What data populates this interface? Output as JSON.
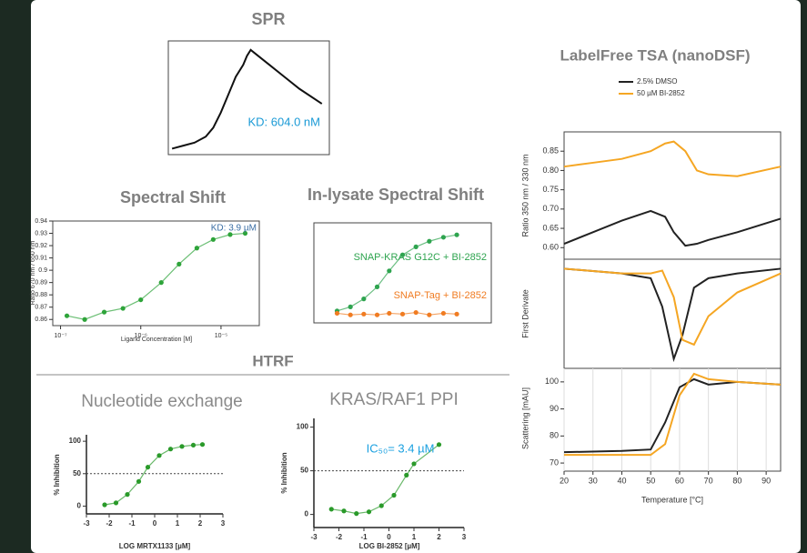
{
  "headings": {
    "htrf": "HTRF",
    "tsa": "LabelFree TSA (nanoDSF)"
  },
  "chart_data": [
    {
      "type": "line",
      "title": "SPR",
      "annotations": [
        "KD: 604.0 nM"
      ],
      "x": [
        0,
        150,
        300,
        450,
        550,
        650,
        750,
        850,
        950,
        1000,
        1050,
        1100,
        1300,
        1500,
        1700,
        2000
      ],
      "series": [
        {
          "color": "#111111",
          "mode": "line",
          "values": [
            2,
            3,
            4,
            6,
            9,
            14,
            20,
            26,
            30,
            33,
            35,
            34,
            30,
            26,
            22,
            17
          ]
        }
      ],
      "xlim": [
        -50,
        2100
      ],
      "ylim": [
        0,
        38
      ]
    },
    {
      "type": "line",
      "title": "Spectral Shift",
      "x_label": "Ligand Concentration [M]",
      "y_label": "Ratio 670 nm / 650 nm",
      "annotations": [
        "KD: 3.9 µM"
      ],
      "xscale": "log",
      "x": [
        1.2e-07,
        2e-07,
        3.5e-07,
        6e-07,
        1e-06,
        1.8e-06,
        3e-06,
        5e-06,
        8e-06,
        1.3e-05,
        2e-05
      ],
      "series": [
        {
          "color": "#2ea43a",
          "mode": "markers+line",
          "values": [
            0.863,
            0.86,
            0.866,
            0.869,
            0.876,
            0.89,
            0.905,
            0.918,
            0.925,
            0.929,
            0.93
          ]
        }
      ],
      "xlim": [
        8e-08,
        3e-05
      ],
      "xticks": [
        {
          "value": 1e-07,
          "label": "10⁻⁷"
        },
        {
          "value": 1e-06,
          "label": "10⁻⁶"
        },
        {
          "value": 1e-05,
          "label": "10⁻⁵"
        }
      ],
      "ylim": [
        0.855,
        0.94
      ],
      "yticks": [
        0.86,
        0.87,
        0.88,
        0.89,
        0.9,
        0.91,
        0.92,
        0.93,
        0.94
      ]
    },
    {
      "type": "line",
      "title": "In-lysate Spectral Shift",
      "xscale": "log",
      "x": [
        1e-08,
        2e-08,
        4e-08,
        8e-08,
        1.5e-07,
        3e-07,
        6e-07,
        1.2e-06,
        2.5e-06,
        5e-06
      ],
      "series": [
        {
          "name": "SNAP-KRAS G12C + BI-2852",
          "color": "#2ea44f",
          "mode": "markers+line",
          "values": [
            0.05,
            0.1,
            0.2,
            0.35,
            0.55,
            0.75,
            0.85,
            0.92,
            0.97,
            1.0
          ]
        },
        {
          "name": "SNAP-Tag + BI-2852",
          "color": "#f07c22",
          "mode": "markers+line",
          "values": [
            0.02,
            0,
            0.01,
            0,
            0.02,
            0.01,
            0.03,
            0,
            0.02,
            0.01
          ]
        }
      ],
      "xlim": [
        3e-09,
        3e-05
      ],
      "ylim": [
        -0.1,
        1.15
      ]
    },
    {
      "type": "line",
      "title": "Nucleotide exchange",
      "x_label": "LOG MRTX1133 [µM]",
      "y_label": "% Inhibition",
      "refline": 50,
      "x": [
        -2.2,
        -1.7,
        -1.2,
        -0.7,
        -0.3,
        0.2,
        0.7,
        1.2,
        1.7,
        2.1
      ],
      "series": [
        {
          "color": "#2a9a2a",
          "mode": "markers+line",
          "values": [
            2,
            5,
            18,
            38,
            60,
            78,
            88,
            92,
            94,
            95
          ]
        }
      ],
      "xlim": [
        -3,
        3
      ],
      "xticks": [
        -3,
        -2,
        -1,
        0,
        1,
        2,
        3
      ],
      "ylim": [
        -12,
        110
      ],
      "yticks": [
        0,
        50,
        100
      ]
    },
    {
      "type": "line",
      "title": "KRAS/RAF1 PPI",
      "x_label": "LOG BI-2852 [µM]",
      "y_label": "% Inhibition",
      "refline": 50,
      "annotations": [
        "IC₅₀= 3.4 µM"
      ],
      "x": [
        -2.3,
        -1.8,
        -1.3,
        -0.8,
        -0.3,
        0.2,
        0.7,
        1.0,
        2.0
      ],
      "series": [
        {
          "color": "#2a9a2a",
          "mode": "markers+line",
          "values": [
            6,
            4,
            1,
            3,
            10,
            22,
            45,
            58,
            80
          ]
        }
      ],
      "xlim": [
        -3,
        3
      ],
      "xticks": [
        -3,
        -2,
        -1,
        0,
        1,
        2,
        3
      ],
      "ylim": [
        -15,
        110
      ],
      "yticks": [
        0,
        50,
        100
      ]
    },
    {
      "type": "line",
      "y_label": "Ratio 350 nm / 330 nm",
      "legend": "top",
      "x": [
        20,
        30,
        40,
        50,
        55,
        58,
        62,
        66,
        70,
        80,
        95
      ],
      "series": [
        {
          "name": "2.5% DMSO",
          "color": "#222222",
          "mode": "line",
          "values": [
            0.61,
            0.64,
            0.67,
            0.695,
            0.68,
            0.64,
            0.605,
            0.61,
            0.62,
            0.64,
            0.675
          ]
        },
        {
          "name": "50 µM BI-2852",
          "color": "#f5a623",
          "mode": "line",
          "values": [
            0.81,
            0.82,
            0.83,
            0.85,
            0.87,
            0.875,
            0.85,
            0.8,
            0.79,
            0.785,
            0.81
          ]
        }
      ],
      "xlim": [
        20,
        95
      ],
      "ylim": [
        0.57,
        0.9
      ],
      "yticks": [
        {
          "value": 0.6,
          "label": "0.60"
        },
        0.65,
        {
          "value": 0.7,
          "label": "0.70"
        },
        0.75,
        {
          "value": 0.8,
          "label": "0.80"
        },
        0.85
      ]
    },
    {
      "type": "line",
      "y_label": "First Derivate",
      "x": [
        20,
        40,
        50,
        54,
        58,
        61,
        65,
        70,
        80,
        95
      ],
      "series": [
        {
          "color": "#222222",
          "mode": "line",
          "values": [
            0,
            -0.05,
            -0.1,
            -0.4,
            -0.95,
            -0.7,
            -0.2,
            -0.1,
            -0.05,
            0
          ]
        },
        {
          "color": "#f5a623",
          "mode": "line",
          "values": [
            0,
            -0.05,
            -0.05,
            -0.02,
            -0.3,
            -0.75,
            -0.8,
            -0.5,
            -0.25,
            -0.05
          ]
        }
      ],
      "xlim": [
        20,
        95
      ],
      "ylim": [
        -1.05,
        0.1
      ]
    },
    {
      "type": "line",
      "x_label": "Temperature [°C]",
      "y_label": "Scattering [mAU]",
      "grid": true,
      "x": [
        20,
        40,
        50,
        55,
        60,
        65,
        70,
        80,
        95
      ],
      "series": [
        {
          "color": "#222222",
          "mode": "line",
          "values": [
            74,
            74.5,
            75,
            85,
            98,
            101,
            99,
            100,
            99
          ]
        },
        {
          "color": "#f5a623",
          "mode": "line",
          "values": [
            73,
            73,
            73,
            77,
            95,
            103,
            101,
            100,
            99
          ]
        }
      ],
      "xlim": [
        20,
        95
      ],
      "xticks": [
        20,
        30,
        40,
        50,
        60,
        70,
        80,
        90
      ],
      "ylim": [
        67,
        105
      ],
      "yticks": [
        70,
        80,
        90,
        100
      ]
    }
  ]
}
